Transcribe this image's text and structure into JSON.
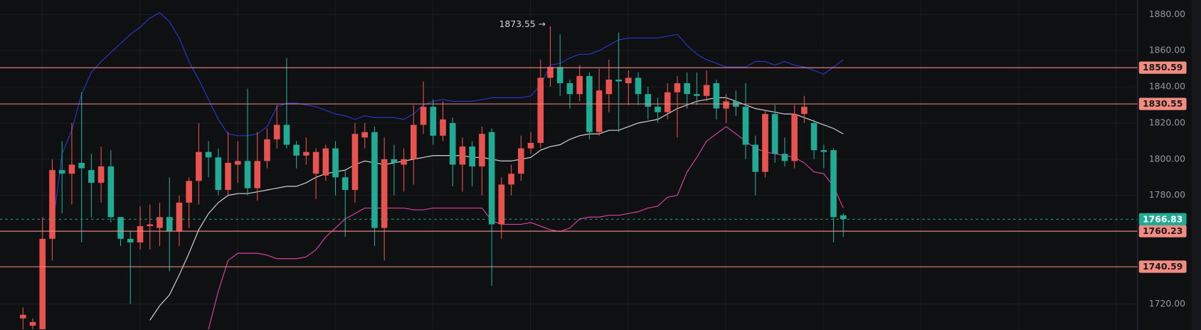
{
  "chart_data": {
    "type": "candlestick",
    "up_color": "#e8524f",
    "down_color": "#22ab94",
    "candles": {
      "open": [
        1712,
        1708,
        1706,
        1756,
        1794,
        1792,
        1798,
        1794,
        1787,
        1796,
        1768,
        1756,
        1754,
        1763,
        1762,
        1768,
        1760,
        1776,
        1788,
        1804,
        1801,
        1783,
        1797,
        1799,
        1784,
        1799,
        1811,
        1819,
        1808,
        1802,
        1792,
        1791,
        1806,
        1790,
        1783,
        1812,
        1815,
        1762,
        1800,
        1797,
        1800,
        1819,
        1829,
        1813,
        1820,
        1797,
        1807,
        1796,
        1815,
        1764,
        1786,
        1792,
        1806,
        1809,
        1845,
        1851,
        1842,
        1836,
        1846,
        1815,
        1836,
        1844,
        1842,
        1845,
        1836,
        1829,
        1826,
        1837,
        1842,
        1836,
        1835,
        1842,
        1828,
        1832,
        1829,
        1808,
        1793,
        1825,
        1803,
        1799,
        1825,
        1820,
        1805,
        1805,
        1769
      ],
      "high": [
        1718,
        1712,
        1768,
        1800,
        1810,
        1820,
        1837,
        1803,
        1807,
        1805,
        1768,
        1760,
        1774,
        1775,
        1776,
        1790,
        1780,
        1790,
        1820,
        1810,
        1806,
        1815,
        1810,
        1839,
        1815,
        1817,
        1830,
        1856,
        1810,
        1812,
        1806,
        1808,
        1810,
        1794,
        1820,
        1820,
        1818,
        1812,
        1808,
        1806,
        1830,
        1843,
        1833,
        1832,
        1823,
        1812,
        1810,
        1818,
        1817,
        1790,
        1797,
        1813,
        1815,
        1855,
        1873.55,
        1869,
        1844,
        1852,
        1848,
        1850,
        1855,
        1870,
        1849,
        1848,
        1840,
        1834,
        1842,
        1846,
        1848,
        1848,
        1849,
        1844,
        1836,
        1838,
        1842,
        1813,
        1827,
        1830,
        1812,
        1830,
        1835,
        1822,
        1808,
        1806,
        1770
      ],
      "low": [
        1706,
        1706,
        1706,
        1744,
        1770,
        1775,
        1754,
        1768,
        1776,
        1765,
        1752,
        1720,
        1750,
        1750,
        1752,
        1738,
        1752,
        1762,
        1775,
        1790,
        1780,
        1780,
        1787,
        1780,
        1777,
        1795,
        1806,
        1806,
        1795,
        1797,
        1778,
        1788,
        1780,
        1757,
        1776,
        1806,
        1752,
        1744,
        1780,
        1782,
        1786,
        1814,
        1808,
        1810,
        1785,
        1782,
        1785,
        1780,
        1730,
        1756,
        1780,
        1788,
        1803,
        1806,
        1840,
        1835,
        1828,
        1832,
        1811,
        1813,
        1826,
        1815,
        1830,
        1830,
        1822,
        1820,
        1822,
        1812,
        1828,
        1830,
        1832,
        1822,
        1820,
        1824,
        1800,
        1780,
        1790,
        1798,
        1796,
        1795,
        1820,
        1800,
        1795,
        1754,
        1757
      ],
      "close": [
        1714,
        1710,
        1756,
        1794,
        1792,
        1797,
        1795,
        1787,
        1796,
        1768,
        1756,
        1754,
        1763,
        1764,
        1768,
        1760,
        1776,
        1788,
        1804,
        1801,
        1783,
        1798,
        1799,
        1784,
        1799,
        1811,
        1819,
        1808,
        1802,
        1804,
        1804,
        1806,
        1790,
        1783,
        1814,
        1815,
        1762,
        1800,
        1798,
        1800,
        1819,
        1829,
        1813,
        1822,
        1797,
        1807,
        1796,
        1814,
        1764,
        1786,
        1792,
        1806,
        1809,
        1845,
        1851,
        1842,
        1836,
        1846,
        1815,
        1838,
        1844,
        1843,
        1845,
        1836,
        1829,
        1826,
        1837,
        1842,
        1836,
        1835,
        1841,
        1828,
        1832,
        1829,
        1808,
        1793,
        1825,
        1803,
        1799,
        1825,
        1829,
        1805,
        1804,
        1768,
        1766.83
      ]
    },
    "lines": [
      {
        "color": "#2a35c9",
        "values": [
          null,
          null,
          null,
          1761,
          1803,
          1816,
          1836,
          1848,
          1854,
          1859,
          1864,
          1869,
          1873,
          1878,
          1881,
          1876,
          1867,
          1854,
          1844,
          1833,
          1822,
          1814,
          1813,
          1813,
          1814,
          1818,
          1829,
          1831,
          1831,
          1830,
          1829,
          1827,
          1825,
          1824,
          1822,
          1824,
          1823,
          1823,
          1823,
          1822,
          1825,
          1830,
          1832,
          1833,
          1832,
          1832,
          1832,
          1833,
          1834,
          1834,
          1834,
          1834,
          1835,
          1841,
          1852,
          1853,
          1856,
          1858,
          1858,
          1860,
          1863,
          1866,
          1867,
          1867,
          1867,
          1867,
          1868,
          1869,
          1863,
          1858,
          1855,
          1853,
          1851,
          1851,
          1851,
          1854,
          1854,
          1852,
          1854,
          1852,
          1851,
          1849,
          1847,
          1851,
          1855
        ]
      },
      {
        "color": "#cfd2d6",
        "values": [
          null,
          null,
          null,
          null,
          null,
          null,
          null,
          null,
          null,
          null,
          null,
          null,
          null,
          1711,
          1719,
          1725,
          1736,
          1748,
          1761,
          1770,
          1776,
          1780,
          1781,
          1781,
          1782,
          1783,
          1784,
          1785,
          1785,
          1787,
          1790,
          1792,
          1793,
          1794,
          1797,
          1799,
          1798,
          1797,
          1798,
          1799,
          1800,
          1801,
          1802,
          1802,
          1802,
          1802,
          1801,
          1801,
          1800,
          1799,
          1799,
          1800,
          1801,
          1805,
          1807,
          1808,
          1811,
          1813,
          1814,
          1814,
          1816,
          1816,
          1818,
          1820,
          1821,
          1822,
          1825,
          1828,
          1830,
          1832,
          1833,
          1834,
          1834,
          1832,
          1830,
          1828,
          1827,
          1826,
          1825,
          1825,
          1823,
          1821,
          1819,
          1817,
          1814
        ]
      },
      {
        "color": "#d6409f",
        "values": [
          null,
          null,
          null,
          null,
          null,
          null,
          null,
          null,
          null,
          null,
          null,
          null,
          null,
          null,
          null,
          null,
          null,
          null,
          null,
          1706,
          1727,
          1744,
          1748,
          1748,
          1748,
          1747,
          1745,
          1745,
          1745,
          1746,
          1750,
          1757,
          1762,
          1767,
          1770,
          1773,
          1773,
          1773,
          1773,
          1773,
          1772,
          1772,
          1773,
          1773,
          1773,
          1773,
          1773,
          1773,
          1766,
          1764,
          1764,
          1764,
          1765,
          1763,
          1761,
          1760,
          1762,
          1767,
          1768,
          1768,
          1769,
          1769,
          1770,
          1771,
          1773,
          1774,
          1779,
          1780,
          1793,
          1801,
          1810,
          1814,
          1818,
          1814,
          1810,
          1806,
          1804,
          1803,
          1802,
          1801,
          1798,
          1793,
          1792,
          1785,
          1773
        ]
      }
    ],
    "levels": [
      {
        "value": 1850.59,
        "color": "#f28b82"
      },
      {
        "value": 1830.55,
        "color": "#f28b82"
      },
      {
        "value": 1760.23,
        "color": "#f28b82"
      },
      {
        "value": 1740.59,
        "color": "#f28b82"
      }
    ],
    "last_price": {
      "value": 1766.83,
      "color": "#22ab94"
    },
    "annotation": {
      "label": "1873.55 →",
      "value": 1873.55
    },
    "ylim": [
      1705.6,
      1888.0
    ],
    "yticks": [
      {
        "value": 1720,
        "label": "1720.00"
      },
      {
        "value": 1740,
        "label": "1740.00"
      },
      {
        "value": 1760,
        "label": "1760.00"
      },
      {
        "value": 1780,
        "label": "1780.00"
      },
      {
        "value": 1800,
        "label": "1800.00"
      },
      {
        "value": 1820,
        "label": "1820.00"
      },
      {
        "value": 1840,
        "label": "1840.00"
      },
      {
        "value": 1860,
        "label": "1860.00"
      },
      {
        "value": 1880,
        "label": "1880.00"
      }
    ],
    "grid": true
  }
}
